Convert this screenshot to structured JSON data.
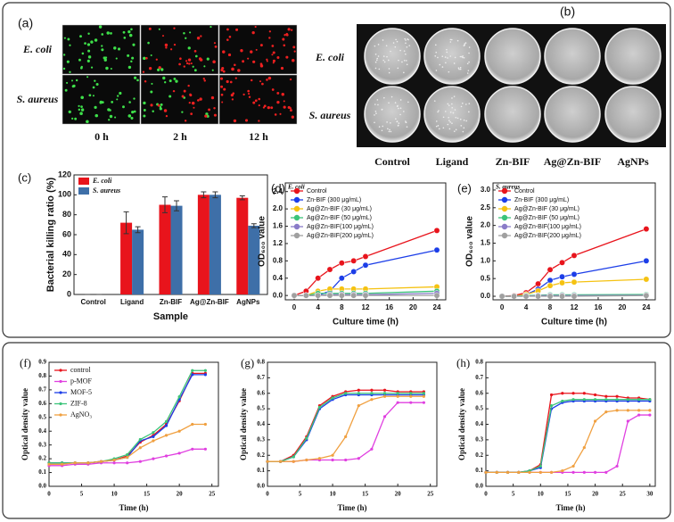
{
  "panels": {
    "a": {
      "label": "(a)",
      "row_labels": [
        "E. coli",
        "S. aureus"
      ],
      "column_labels": [
        "0 h",
        "2 h",
        "12 h"
      ]
    },
    "b": {
      "label": "(b)",
      "row_labels": [
        "E. coli",
        "S. aureus"
      ],
      "column_labels": [
        "Control",
        "Ligand",
        "Zn-BIF",
        "Ag@Zn-BIF",
        "AgNPs"
      ]
    }
  },
  "chart_data": [
    {
      "type": "bar",
      "panel_label": "(c)",
      "xlabel": "Sample",
      "ylabel": "Bacterial killing ratio (%)",
      "categories": [
        "Control",
        "Ligand",
        "Zn-BIF",
        "Ag@Zn-BIF",
        "AgNPs"
      ],
      "series": [
        {
          "name": "E. coli",
          "color": "#e8141c",
          "values": [
            0,
            72,
            90,
            100,
            97
          ],
          "errors": [
            0,
            11,
            8,
            3,
            2
          ]
        },
        {
          "name": "S. aureus",
          "color": "#3e6fa8",
          "values": [
            0,
            65,
            89,
            100,
            69
          ],
          "errors": [
            0,
            3,
            5,
            3,
            2
          ]
        }
      ],
      "ylim": [
        0,
        120
      ],
      "yticks": [
        0,
        20,
        40,
        60,
        80,
        100,
        120
      ],
      "legend": "upper left"
    },
    {
      "type": "line",
      "panel_label": "(d)",
      "annotation": "E. coli",
      "xlabel": "Culture time (h)",
      "ylabel": "OD₆₀₀ value",
      "x": [
        0,
        2,
        4,
        6,
        8,
        10,
        12,
        24
      ],
      "series": [
        {
          "name": "Control",
          "color": "#e8141c",
          "values": [
            0,
            0.1,
            0.4,
            0.6,
            0.75,
            0.8,
            0.9,
            1.5
          ]
        },
        {
          "name": "Zn-BIF      (300 μg/mL)",
          "color": "#1c3ee8",
          "values": [
            0,
            0,
            0,
            0.1,
            0.4,
            0.55,
            0.7,
            1.05
          ]
        },
        {
          "name": "Ag@Zn-BIF  (30 μg/mL)",
          "color": "#f5c211",
          "values": [
            0,
            0,
            0.1,
            0.15,
            0.15,
            0.15,
            0.15,
            0.2
          ]
        },
        {
          "name": "Ag@Zn-BIF  (50 μg/mL)",
          "color": "#3cc47a",
          "values": [
            0,
            0,
            0.05,
            0.05,
            0.05,
            0.05,
            0.05,
            0.1
          ]
        },
        {
          "name": "Ag@Zn-BIF(100 μg/mL)",
          "color": "#8a7cc8",
          "values": [
            0,
            0,
            0,
            0.02,
            0.02,
            0.02,
            0.02,
            0.05
          ]
        },
        {
          "name": "Ag@Zn-BIF(200 μg/mL)",
          "color": "#a0a0a0",
          "values": [
            0,
            0,
            0,
            0,
            0,
            0,
            0,
            0
          ]
        }
      ],
      "xlim": [
        -1.5,
        25.5
      ],
      "xticks": [
        0,
        4,
        8,
        12,
        16,
        20,
        24
      ],
      "ylim": [
        -0.1,
        2.6
      ],
      "yticks": [
        {
          "value": 0,
          "label": "0.0"
        },
        0.4,
        0.8,
        1.2,
        1.6,
        {
          "value": 2,
          "label": "2.0"
        },
        2.4
      ],
      "legend": "upper left"
    },
    {
      "type": "line",
      "panel_label": "(e)",
      "annotation": "S. aureus",
      "xlabel": "Culture time (h)",
      "ylabel": "OD₆₀₀ value",
      "x": [
        0,
        2,
        4,
        6,
        8,
        10,
        12,
        24
      ],
      "series": [
        {
          "name": "Control",
          "color": "#e8141c",
          "values": [
            0,
            0.02,
            0.1,
            0.35,
            0.75,
            0.95,
            1.15,
            1.9
          ]
        },
        {
          "name": "Zn-BIF      (300 μg/mL)",
          "color": "#1c3ee8",
          "values": [
            0,
            0,
            0.05,
            0.2,
            0.45,
            0.55,
            0.62,
            1
          ]
        },
        {
          "name": "Ag@Zn-BIF  (30 μg/mL)",
          "color": "#f5c211",
          "values": [
            0,
            0,
            0.05,
            0.15,
            0.3,
            0.38,
            0.4,
            0.48
          ]
        },
        {
          "name": "Ag@Zn-BIF  (50 μg/mL)",
          "color": "#3cc47a",
          "values": [
            0,
            0,
            0.02,
            0.03,
            0.04,
            0.04,
            0.04,
            0.05
          ]
        },
        {
          "name": "Ag@Zn-BIF(100 μg/mL)",
          "color": "#8a7cc8",
          "values": [
            0,
            0,
            0,
            0.02,
            0.02,
            0.02,
            0.02,
            0.03
          ]
        },
        {
          "name": "Ag@Zn-BIF(200 μg/mL)",
          "color": "#a0a0a0",
          "values": [
            0,
            0,
            0,
            0,
            0,
            0,
            0,
            0.02
          ]
        }
      ],
      "xlim": [
        -1.5,
        25.5
      ],
      "xticks": [
        0,
        4,
        8,
        12,
        16,
        20,
        24
      ],
      "ylim": [
        -0.1,
        3.2
      ],
      "yticks": [
        {
          "value": 0,
          "label": "0.0"
        },
        0.5,
        {
          "value": 1,
          "label": "1.0"
        },
        1.5,
        {
          "value": 2,
          "label": "2.0"
        },
        2.5,
        {
          "value": 3,
          "label": "3.0"
        }
      ],
      "legend": "upper left"
    },
    {
      "type": "line",
      "panel_label": "(f)",
      "xlabel": "Time (h)",
      "ylabel": "Optical density value",
      "x": [
        0,
        2,
        4,
        6,
        8,
        10,
        12,
        14,
        16,
        18,
        20,
        22,
        24
      ],
      "series": [
        {
          "name": "control",
          "color": "#e8141c",
          "values": [
            0.17,
            0.17,
            0.17,
            0.17,
            0.18,
            0.19,
            0.22,
            0.32,
            0.37,
            0.45,
            0.62,
            0.82,
            0.82
          ]
        },
        {
          "name": "p-MOF",
          "color": "#e040e0",
          "values": [
            0.15,
            0.15,
            0.16,
            0.16,
            0.17,
            0.17,
            0.17,
            0.18,
            0.2,
            0.22,
            0.24,
            0.27,
            0.27
          ]
        },
        {
          "name": "MOF-5",
          "color": "#1c3ee8",
          "values": [
            0.17,
            0.17,
            0.17,
            0.17,
            0.18,
            0.19,
            0.21,
            0.33,
            0.36,
            0.44,
            0.63,
            0.81,
            0.81
          ]
        },
        {
          "name": "ZIF-8",
          "color": "#3cc47a",
          "values": [
            0.17,
            0.17,
            0.17,
            0.17,
            0.18,
            0.2,
            0.23,
            0.34,
            0.39,
            0.47,
            0.65,
            0.84,
            0.84
          ]
        },
        {
          "name": "AgNO₃",
          "color": "#f0a040",
          "values": [
            0.16,
            0.16,
            0.17,
            0.17,
            0.18,
            0.19,
            0.21,
            0.28,
            0.33,
            0.37,
            0.4,
            0.45,
            0.45
          ]
        }
      ],
      "xlim": [
        0,
        26
      ],
      "xticks": [
        0,
        5,
        10,
        15,
        20,
        25
      ],
      "ylim": [
        0,
        0.9
      ],
      "yticks": [
        {
          "value": 0,
          "label": "0.0"
        },
        0.1,
        0.2,
        0.3,
        0.4,
        0.5,
        0.6,
        0.7,
        0.8,
        0.9
      ],
      "legend": "upper left"
    },
    {
      "type": "line",
      "panel_label": "(g)",
      "xlabel": "Time (h)",
      "ylabel": "Optical density value",
      "x": [
        0,
        2,
        4,
        6,
        8,
        10,
        12,
        14,
        16,
        18,
        20,
        22,
        24
      ],
      "series": [
        {
          "color": "#e8141c",
          "values": [
            0.16,
            0.16,
            0.2,
            0.32,
            0.52,
            0.58,
            0.61,
            0.62,
            0.62,
            0.62,
            0.61,
            0.61,
            0.61
          ]
        },
        {
          "color": "#e040e0",
          "values": [
            0.16,
            0.16,
            0.16,
            0.17,
            0.17,
            0.17,
            0.17,
            0.18,
            0.24,
            0.45,
            0.54,
            0.54,
            0.54
          ]
        },
        {
          "color": "#1c3ee8",
          "values": [
            0.16,
            0.16,
            0.19,
            0.3,
            0.5,
            0.56,
            0.59,
            0.59,
            0.59,
            0.59,
            0.59,
            0.59,
            0.59
          ]
        },
        {
          "color": "#3cc47a",
          "values": [
            0.16,
            0.16,
            0.19,
            0.31,
            0.51,
            0.57,
            0.6,
            0.6,
            0.6,
            0.6,
            0.6,
            0.6,
            0.6
          ]
        },
        {
          "color": "#f0a040",
          "values": [
            0.16,
            0.16,
            0.16,
            0.17,
            0.18,
            0.2,
            0.32,
            0.52,
            0.56,
            0.58,
            0.58,
            0.58,
            0.58
          ]
        }
      ],
      "xlim": [
        0,
        26
      ],
      "xticks": [
        0,
        5,
        10,
        15,
        20,
        25
      ],
      "ylim": [
        0,
        0.8
      ],
      "yticks": [
        {
          "value": 0,
          "label": "0.0"
        },
        0.1,
        0.2,
        0.3,
        0.4,
        0.5,
        0.6,
        0.7,
        0.8
      ]
    },
    {
      "type": "line",
      "panel_label": "(h)",
      "xlabel": "Time (h)",
      "ylabel": "Optical density value",
      "x": [
        0,
        2,
        4,
        6,
        8,
        10,
        12,
        14,
        16,
        18,
        20,
        22,
        24,
        26,
        28,
        30
      ],
      "series": [
        {
          "color": "#e8141c",
          "values": [
            0.09,
            0.09,
            0.09,
            0.09,
            0.1,
            0.14,
            0.59,
            0.6,
            0.6,
            0.6,
            0.59,
            0.58,
            0.58,
            0.57,
            0.57,
            0.56
          ]
        },
        {
          "color": "#e040e0",
          "values": [
            0.09,
            0.09,
            0.09,
            0.09,
            0.09,
            0.09,
            0.09,
            0.09,
            0.09,
            0.09,
            0.09,
            0.09,
            0.13,
            0.42,
            0.46,
            0.46
          ]
        },
        {
          "color": "#1c3ee8",
          "values": [
            0.09,
            0.09,
            0.09,
            0.09,
            0.1,
            0.12,
            0.5,
            0.54,
            0.55,
            0.55,
            0.55,
            0.55,
            0.55,
            0.55,
            0.55,
            0.55
          ]
        },
        {
          "color": "#3cc47a",
          "values": [
            0.09,
            0.09,
            0.09,
            0.09,
            0.1,
            0.13,
            0.52,
            0.55,
            0.56,
            0.56,
            0.56,
            0.56,
            0.56,
            0.56,
            0.56,
            0.56
          ]
        },
        {
          "color": "#f0a040",
          "values": [
            0.09,
            0.09,
            0.09,
            0.09,
            0.09,
            0.09,
            0.09,
            0.1,
            0.13,
            0.25,
            0.42,
            0.48,
            0.49,
            0.49,
            0.49,
            0.49
          ]
        }
      ],
      "xlim": [
        0,
        31
      ],
      "xticks": [
        0,
        5,
        10,
        15,
        20,
        25,
        30
      ],
      "ylim": [
        0,
        0.8
      ],
      "yticks": [
        {
          "value": 0,
          "label": "0.0"
        },
        0.1,
        0.2,
        0.3,
        0.4,
        0.5,
        0.6,
        0.7,
        0.8
      ]
    }
  ]
}
